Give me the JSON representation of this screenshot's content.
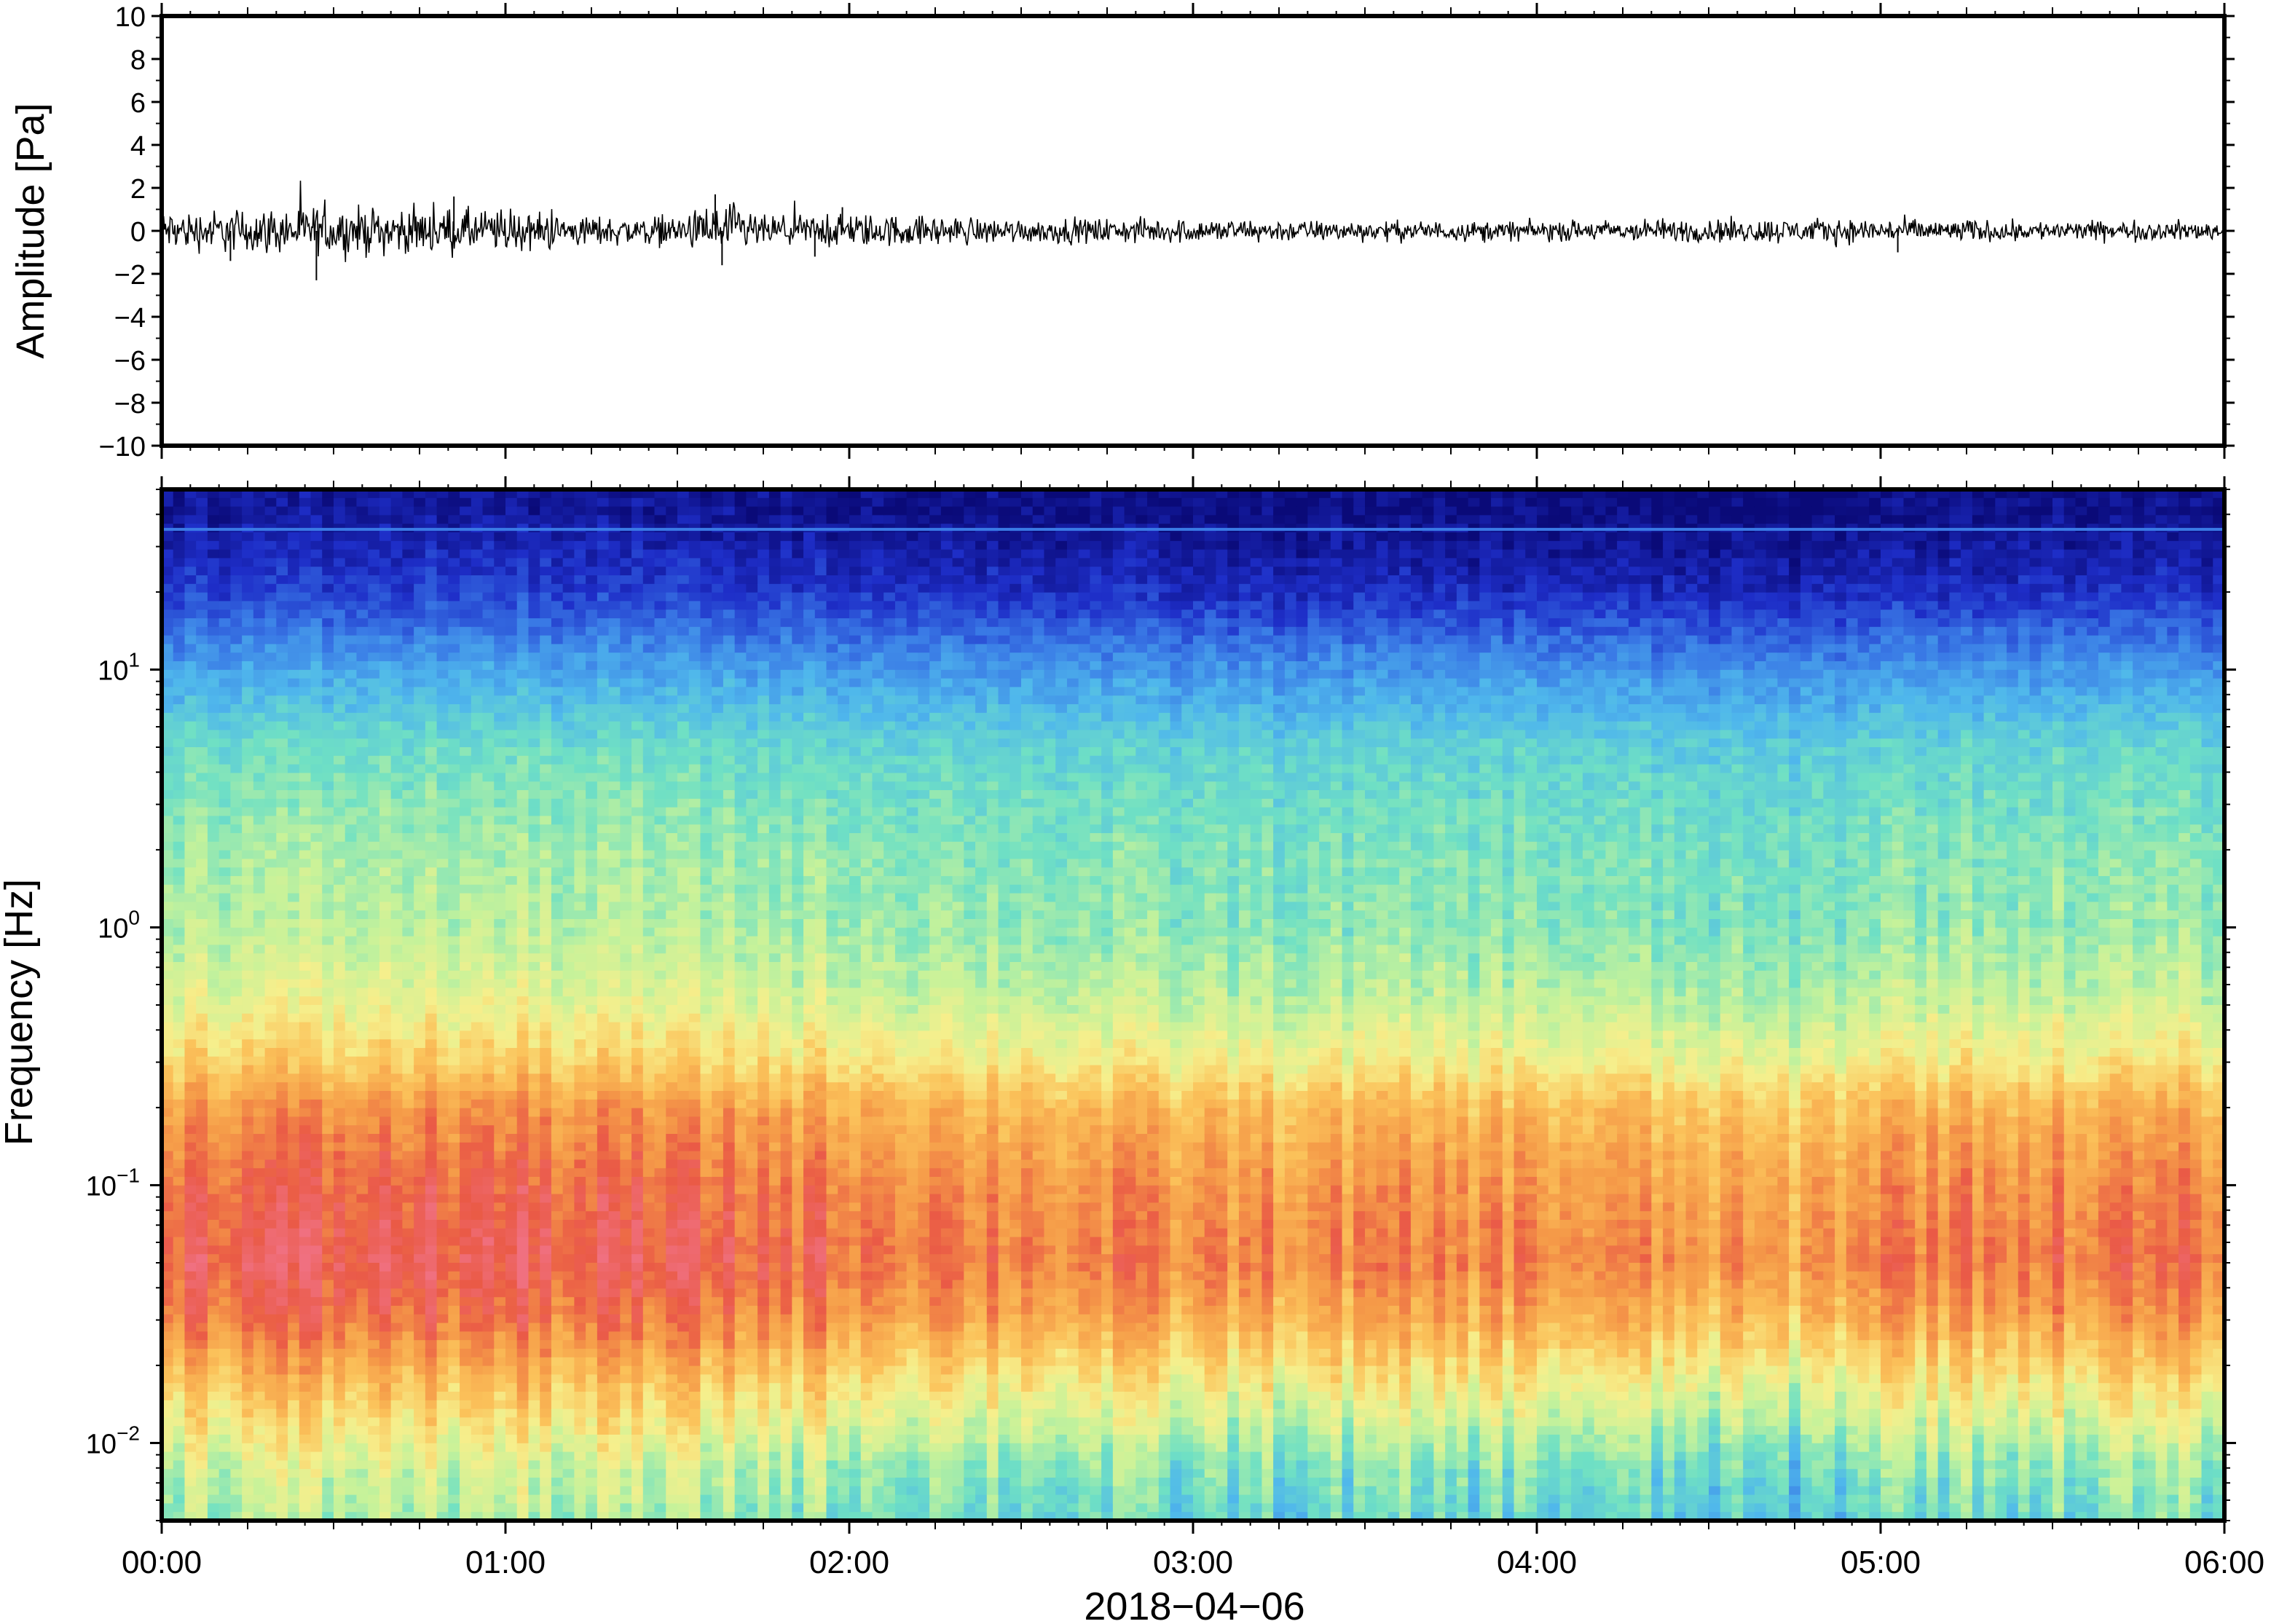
{
  "chart_data": [
    {
      "type": "line",
      "panel": "waveform",
      "ylabel": "Amplitude [Pa]",
      "ylim": [
        -10,
        10
      ],
      "yticks": [
        10,
        8,
        6,
        4,
        2,
        0,
        -2,
        -4,
        -6,
        -8,
        -10
      ],
      "ytick_labels": [
        "10",
        "8",
        "6",
        "4",
        "2",
        "0",
        "−2",
        "−4",
        "−6",
        "−8",
        "−10"
      ],
      "x_range_hours": [
        0,
        6
      ],
      "series": [
        {
          "description_free": true,
          "color": "#000000",
          "envelope_hours": [
            0,
            0.25,
            0.5,
            0.75,
            1.0,
            1.25,
            1.5,
            1.65,
            1.75,
            2.0,
            2.5,
            3.0,
            3.5,
            4.0,
            4.5,
            5.0,
            5.5,
            6.0
          ],
          "envelope_amplitude": [
            0.8,
            0.9,
            1.0,
            0.9,
            0.9,
            0.6,
            0.6,
            1.2,
            0.6,
            0.7,
            0.5,
            0.5,
            0.4,
            0.4,
            0.5,
            0.5,
            0.4,
            0.4
          ],
          "spikes": [
            {
              "hour": 0.45,
              "value": -2.3
            },
            {
              "hour": 0.85,
              "value": 1.6
            },
            {
              "hour": 1.61,
              "value": 1.7
            },
            {
              "hour": 1.63,
              "value": -1.6
            },
            {
              "hour": 1.9,
              "value": -1.2
            },
            {
              "hour": 1.98,
              "value": 1.1
            },
            {
              "hour": 0.2,
              "value": -1.4
            },
            {
              "hour": 5.05,
              "value": -1.0
            }
          ]
        }
      ]
    },
    {
      "type": "heatmap",
      "panel": "spectrogram",
      "ylabel": "Frequency [Hz]",
      "yscale": "log",
      "ylim": [
        0.005,
        50
      ],
      "yticks": [
        {
          "value": 10,
          "base": "10",
          "exp": "1"
        },
        {
          "value": 1,
          "base": "10",
          "exp": "0"
        },
        {
          "value": 0.1,
          "base": "10",
          "exp": "−1"
        },
        {
          "value": 0.01,
          "base": "10",
          "exp": "−2"
        }
      ],
      "xlabel": "2018−04−06",
      "x_range_hours": [
        0,
        6
      ],
      "xticks": [
        "00:00",
        "01:00",
        "02:00",
        "03:00",
        "04:00",
        "05:00",
        "06:00"
      ],
      "colormap": [
        "#0a0a78",
        "#1e2ec8",
        "#3a7be6",
        "#4fb7ec",
        "#6fe0c4",
        "#c6f29a",
        "#f6ef8c",
        "#fbc25a",
        "#f59a48",
        "#ea5a46",
        "#f07080"
      ],
      "band_line_hz": 35,
      "band_line_color": "#3a7be6",
      "structure": [
        {
          "freq_hz": 40,
          "level": 0.02
        },
        {
          "freq_hz": 20,
          "level": 0.1
        },
        {
          "freq_hz": 10,
          "level": 0.25
        },
        {
          "freq_hz": 5,
          "level": 0.37
        },
        {
          "freq_hz": 2,
          "level": 0.43
        },
        {
          "freq_hz": 1,
          "level": 0.45
        },
        {
          "freq_hz": 0.5,
          "level": 0.52
        },
        {
          "freq_hz": 0.3,
          "level": 0.62
        },
        {
          "freq_hz": 0.2,
          "level": 0.74
        },
        {
          "freq_hz": 0.1,
          "level": 0.82
        },
        {
          "freq_hz": 0.05,
          "level": 0.86
        },
        {
          "freq_hz": 0.03,
          "level": 0.78
        },
        {
          "freq_hz": 0.015,
          "level": 0.6
        },
        {
          "freq_hz": 0.008,
          "level": 0.45
        },
        {
          "freq_hz": 0.005,
          "level": 0.4
        }
      ],
      "time_modulation_hours": [
        0,
        1,
        2,
        3,
        4,
        4.75,
        5,
        6
      ],
      "time_modulation_offset": [
        0.06,
        0.06,
        0.02,
        -0.03,
        -0.02,
        -0.07,
        0.0,
        0.0
      ]
    }
  ]
}
